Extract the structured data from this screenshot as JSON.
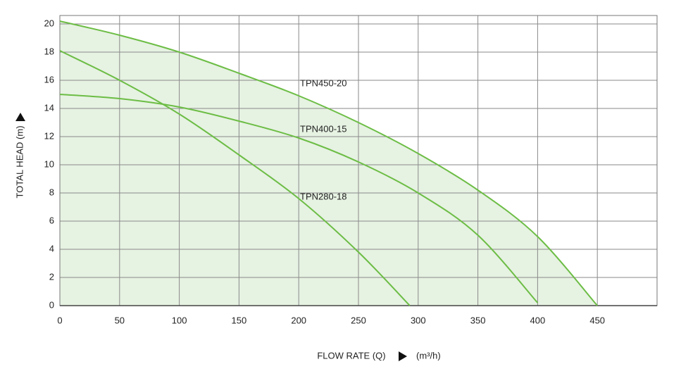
{
  "chart_data": {
    "type": "line",
    "y_label": "TOTAL HEAD (m)",
    "x_label": "FLOW RATE (Q)",
    "x_unit": "(m³/h)",
    "xlim": [
      0,
      500
    ],
    "xticks": [
      0,
      50,
      100,
      150,
      200,
      250,
      300,
      350,
      400,
      450
    ],
    "ylim": [
      0,
      20.6
    ],
    "yticks": [
      0,
      2,
      4,
      6,
      8,
      10,
      12,
      14,
      16,
      18,
      20
    ],
    "grid": true,
    "fill_color": "#e6f2e2",
    "series": [
      {
        "name": "TPN450-20",
        "color": "#6cbd45",
        "fill": true,
        "x": [
          0,
          50,
          100,
          150,
          200,
          250,
          300,
          350,
          400,
          450
        ],
        "values": [
          20.2,
          19.2,
          18,
          16.5,
          14.9,
          13,
          10.8,
          8.2,
          4.9,
          0
        ]
      },
      {
        "name": "TPN400-15",
        "color": "#6cbd45",
        "fill": false,
        "x": [
          0,
          50,
          100,
          150,
          200,
          250,
          300,
          350,
          400
        ],
        "values": [
          15,
          14.7,
          14.1,
          13.1,
          11.9,
          10.2,
          8,
          5,
          0.2
        ]
      },
      {
        "name": "TPN280-18",
        "color": "#6cbd45",
        "fill": false,
        "x": [
          0,
          50,
          100,
          150,
          200,
          250,
          293
        ],
        "values": [
          18.1,
          16,
          13.6,
          10.7,
          7.6,
          3.8,
          0
        ]
      }
    ]
  }
}
